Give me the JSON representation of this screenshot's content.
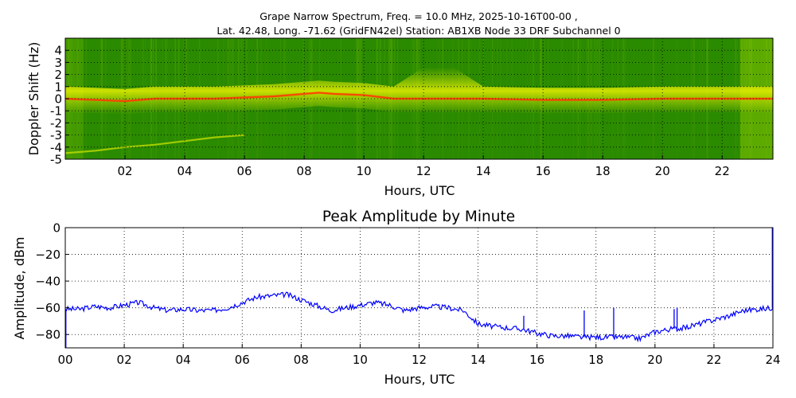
{
  "figure": {
    "title_line1": "Grape Narrow Spectrum, Freq. = 10.0 MHz, 2025-10-16T00-00 ,",
    "title_line2": "Lat.  42.48, Long. -71.62 (GridFN42el) Station: AB1XB Node 33 DRF Subchannel 0"
  },
  "chart_data": [
    {
      "type": "heatmap",
      "title": "",
      "xlabel": "Hours, UTC",
      "ylabel": "Doppler Shift (Hz)",
      "xlim": [
        0,
        23.7
      ],
      "ylim": [
        -5,
        5
      ],
      "x_ticks": [
        "02",
        "04",
        "06",
        "08",
        "10",
        "12",
        "14",
        "16",
        "18",
        "20",
        "22"
      ],
      "x_tick_values": [
        2,
        4,
        6,
        8,
        10,
        12,
        14,
        16,
        18,
        20,
        22
      ],
      "y_ticks": [
        "4",
        "3",
        "2",
        "1",
        "0",
        "-1",
        "-2",
        "-3",
        "-4",
        "-5"
      ],
      "y_tick_values": [
        4,
        3,
        2,
        1,
        0,
        -1,
        -2,
        -3,
        -4,
        -5
      ],
      "grid": true,
      "colors": {
        "background": "#2a8a00",
        "mid": "#d4e800",
        "peak": "#ff3c00"
      },
      "carrier_trace": {
        "hours": [
          0,
          1,
          2,
          2.5,
          3,
          4,
          5,
          6,
          7,
          8,
          8.5,
          9,
          10,
          11,
          12,
          13,
          14,
          16,
          18,
          20,
          22,
          23.7
        ],
        "doppler_hz": [
          0,
          -0.1,
          -0.2,
          -0.1,
          0,
          0,
          0,
          0.1,
          0.2,
          0.4,
          0.5,
          0.4,
          0.3,
          0,
          0,
          0,
          0,
          -0.1,
          -0.1,
          0,
          0,
          0
        ]
      },
      "low_mode_trace": {
        "hours": [
          0,
          1,
          2,
          3,
          4,
          5,
          6
        ],
        "doppler_hz": [
          -4.5,
          -4.3,
          -4.0,
          -3.8,
          -3.5,
          -3.2,
          -3.0
        ]
      }
    },
    {
      "type": "line",
      "title": "Peak Amplitude by Minute",
      "xlabel": "Hours, UTC",
      "ylabel": "Amplitude, dBm",
      "xlim": [
        0,
        24
      ],
      "ylim": [
        -90,
        0
      ],
      "x_ticks": [
        "00",
        "02",
        "04",
        "06",
        "08",
        "10",
        "12",
        "14",
        "16",
        "18",
        "20",
        "22",
        "24"
      ],
      "x_tick_values": [
        0,
        2,
        4,
        6,
        8,
        10,
        12,
        14,
        16,
        18,
        20,
        22,
        24
      ],
      "y_ticks": [
        "0",
        "−20",
        "−40",
        "−60",
        "−80"
      ],
      "y_tick_values": [
        0,
        -20,
        -40,
        -60,
        -80
      ],
      "grid": true,
      "line_color": "#0000ff",
      "x": [
        0,
        0.5,
        1,
        1.5,
        2,
        2.5,
        3,
        3.5,
        4,
        4.5,
        5,
        5.5,
        6,
        6.5,
        7,
        7.5,
        8,
        8.5,
        9,
        9.5,
        10,
        10.5,
        11,
        11.5,
        12,
        12.5,
        13,
        13.5,
        14,
        14.5,
        15,
        15.5,
        16,
        16.5,
        17,
        17.5,
        18,
        18.5,
        19,
        19.5,
        20,
        20.5,
        21,
        21.5,
        22,
        22.5,
        23,
        23.5,
        24
      ],
      "y": [
        -61,
        -61,
        -59,
        -60,
        -58,
        -56,
        -60,
        -62,
        -61,
        -62,
        -62,
        -60,
        -56,
        -52,
        -51,
        -50,
        -54,
        -58,
        -62,
        -60,
        -58,
        -56,
        -58,
        -62,
        -60,
        -59,
        -60,
        -62,
        -72,
        -74,
        -75,
        -76,
        -79,
        -81,
        -81,
        -82,
        -82,
        -82,
        -82,
        -83,
        -78,
        -76,
        -75,
        -72,
        -69,
        -66,
        -62,
        -61,
        -60
      ],
      "spikes": [
        {
          "x": 0.02,
          "y": -90
        },
        {
          "x": 15.55,
          "y": -66
        },
        {
          "x": 17.6,
          "y": -62
        },
        {
          "x": 18.6,
          "y": -60
        },
        {
          "x": 20.65,
          "y": -61
        },
        {
          "x": 20.75,
          "y": -60
        },
        {
          "x": 23.98,
          "y": 0
        }
      ]
    }
  ]
}
